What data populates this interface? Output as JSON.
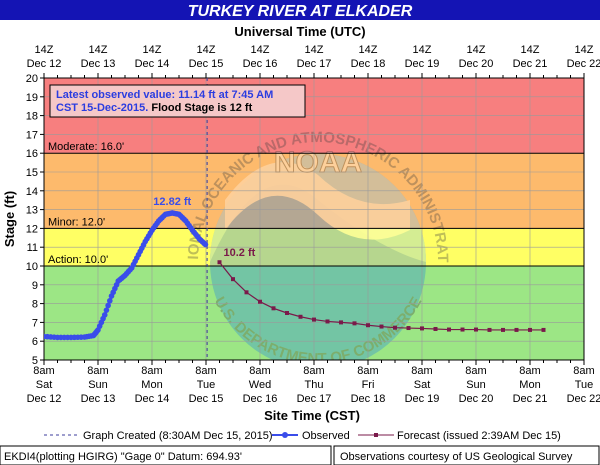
{
  "chart_data": {
    "type": "line",
    "title": "TURKEY RIVER AT ELKADER",
    "top_axis_title": "Universal Time (UTC)",
    "xlabel": "Site Time (CST)",
    "ylabel": "Stage (ft)",
    "ylim": [
      5,
      20
    ],
    "yticks": [
      "5",
      "6",
      "7",
      "8",
      "9",
      "10",
      "11",
      "12",
      "13",
      "14",
      "15",
      "16",
      "17",
      "18",
      "19",
      "20"
    ],
    "xlim_hours": [
      0,
      240
    ],
    "bottom_ticks": [
      {
        "time": "8am",
        "day": "Sat",
        "date": "Dec 12"
      },
      {
        "time": "8am",
        "day": "Sun",
        "date": "Dec 13"
      },
      {
        "time": "8am",
        "day": "Mon",
        "date": "Dec 14"
      },
      {
        "time": "8am",
        "day": "Tue",
        "date": "Dec 15"
      },
      {
        "time": "8am",
        "day": "Wed",
        "date": "Dec 16"
      },
      {
        "time": "8am",
        "day": "Thu",
        "date": "Dec 17"
      },
      {
        "time": "8am",
        "day": "Fri",
        "date": "Dec 18"
      },
      {
        "time": "8am",
        "day": "Sat",
        "date": "Dec 19"
      },
      {
        "time": "8am",
        "day": "Sun",
        "date": "Dec 20"
      },
      {
        "time": "8am",
        "day": "Mon",
        "date": "Dec 21"
      },
      {
        "time": "8am",
        "day": "Tue",
        "date": "Dec 22"
      }
    ],
    "top_ticks": [
      {
        "time": "14Z",
        "date": "Dec 12"
      },
      {
        "time": "14Z",
        "date": "Dec 13"
      },
      {
        "time": "14Z",
        "date": "Dec 14"
      },
      {
        "time": "14Z",
        "date": "Dec 15"
      },
      {
        "time": "14Z",
        "date": "Dec 16"
      },
      {
        "time": "14Z",
        "date": "Dec 17"
      },
      {
        "time": "14Z",
        "date": "Dec 18"
      },
      {
        "time": "14Z",
        "date": "Dec 19"
      },
      {
        "time": "14Z",
        "date": "Dec 20"
      },
      {
        "time": "14Z",
        "date": "Dec 21"
      },
      {
        "time": "14Z",
        "date": "Dec 22"
      }
    ],
    "bands": [
      {
        "from": 16,
        "to": 20,
        "color": "#f77f7f"
      },
      {
        "from": 12,
        "to": 16,
        "color": "#fdba6c"
      },
      {
        "from": 10,
        "to": 12,
        "color": "#ffff64"
      },
      {
        "from": 5,
        "to": 10,
        "color": "#9ce685"
      }
    ],
    "thresholds": [
      {
        "label": "Moderate: 16.0'",
        "value": 16
      },
      {
        "label": "Minor: 12.0'",
        "value": 12
      },
      {
        "label": "Action: 10.0'",
        "value": 10
      }
    ],
    "info_box": {
      "line1": "Latest observed value: 11.14 ft at 7:45 AM",
      "line2a": "CST 15-Dec-2015.",
      "line2b": " Flood Stage is 12 ft"
    },
    "graph_created_hour": 72.5,
    "series": [
      {
        "name": "Observed",
        "color": "#3a4dea",
        "x": [
          0,
          6,
          12,
          18,
          22,
          24,
          27,
          30,
          33,
          36,
          39,
          42,
          45,
          48,
          51,
          54,
          57,
          60,
          63,
          66,
          69,
          71.75
        ],
        "y": [
          6.25,
          6.2,
          6.2,
          6.22,
          6.3,
          6.6,
          7.4,
          8.4,
          9.2,
          9.5,
          9.9,
          10.6,
          11.3,
          11.9,
          12.4,
          12.75,
          12.82,
          12.75,
          12.4,
          11.9,
          11.45,
          11.14
        ]
      },
      {
        "name": "Forecast",
        "color": "#7a1a4a",
        "x": [
          78,
          84,
          90,
          96,
          102,
          108,
          114,
          120,
          126,
          132,
          138,
          144,
          150,
          156,
          162,
          168,
          174,
          180,
          186,
          192,
          198,
          204,
          210,
          216,
          222
        ],
        "y": [
          10.2,
          9.3,
          8.6,
          8.1,
          7.75,
          7.5,
          7.3,
          7.15,
          7.05,
          7.0,
          6.95,
          6.85,
          6.78,
          6.72,
          6.7,
          6.68,
          6.65,
          6.62,
          6.62,
          6.62,
          6.6,
          6.6,
          6.6,
          6.6,
          6.6
        ]
      }
    ],
    "annotations": [
      {
        "text": "12.82 ft",
        "x": 57,
        "y": 12.82,
        "color": "#3a4dea"
      },
      {
        "text": "10.2 ft",
        "x": 78,
        "y": 10.2,
        "color": "#7a1a4a"
      }
    ],
    "legend": {
      "graph_created": "Graph Created (8:30AM Dec 15, 2015)",
      "observed": "Observed",
      "forecast": "Forecast (issued 2:39AM Dec 15)"
    },
    "footer_left": "EKDI4(plotting HGIRG) \"Gage 0\" Datum:  694.93'",
    "footer_right": "Observations courtesy of US Geological Survey",
    "watermark_text_top": "NATIONAL OCEANIC AND ATMOSPHERIC ADMINISTRATION",
    "watermark_text_bottom": "U.S. DEPARTMENT OF COMMERCE",
    "watermark_logo": "NOAA"
  }
}
